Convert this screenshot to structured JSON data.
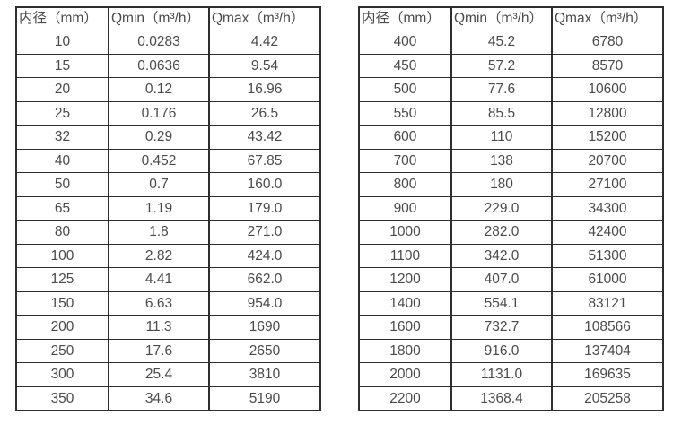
{
  "colors": {
    "border": "#2e2e2e",
    "text": "#4a4a4a",
    "background": "#ffffff"
  },
  "tables": [
    {
      "name": "flow-spec-small-diameters",
      "headers": [
        "内径（mm）",
        "Qmin（m³/h）",
        "Qmax（m³/h）"
      ],
      "rows": [
        [
          "10",
          "0.0283",
          "4.42"
        ],
        [
          "15",
          "0.0636",
          "9.54"
        ],
        [
          "20",
          "0.12",
          "16.96"
        ],
        [
          "25",
          "0.176",
          "26.5"
        ],
        [
          "32",
          "0.29",
          "43.42"
        ],
        [
          "40",
          "0.452",
          "67.85"
        ],
        [
          "50",
          "0.7",
          "160.0"
        ],
        [
          "65",
          "1.19",
          "179.0"
        ],
        [
          "80",
          "1.8",
          "271.0"
        ],
        [
          "100",
          "2.82",
          "424.0"
        ],
        [
          "125",
          "4.41",
          "662.0"
        ],
        [
          "150",
          "6.63",
          "954.0"
        ],
        [
          "200",
          "11.3",
          "1690"
        ],
        [
          "250",
          "17.6",
          "2650"
        ],
        [
          "300",
          "25.4",
          "3810"
        ],
        [
          "350",
          "34.6",
          "5190"
        ]
      ]
    },
    {
      "name": "flow-spec-large-diameters",
      "headers": [
        "内径（mm）",
        "Qmin（m³/h）",
        "Qmax（m³/h）"
      ],
      "rows": [
        [
          "400",
          "45.2",
          "6780"
        ],
        [
          "450",
          "57.2",
          "8570"
        ],
        [
          "500",
          "77.6",
          "10600"
        ],
        [
          "550",
          "85.5",
          "12800"
        ],
        [
          "600",
          "110",
          "15200"
        ],
        [
          "700",
          "138",
          "20700"
        ],
        [
          "800",
          "180",
          "27100"
        ],
        [
          "900",
          "229.0",
          "34300"
        ],
        [
          "1000",
          "282.0",
          "42400"
        ],
        [
          "1100",
          "342.0",
          "51300"
        ],
        [
          "1200",
          "407.0",
          "61000"
        ],
        [
          "1400",
          "554.1",
          "83121"
        ],
        [
          "1600",
          "732.7",
          "108566"
        ],
        [
          "1800",
          "916.0",
          "137404"
        ],
        [
          "2000",
          "1131.0",
          "169635"
        ],
        [
          "2200",
          "1368.4",
          "205258"
        ]
      ]
    }
  ]
}
